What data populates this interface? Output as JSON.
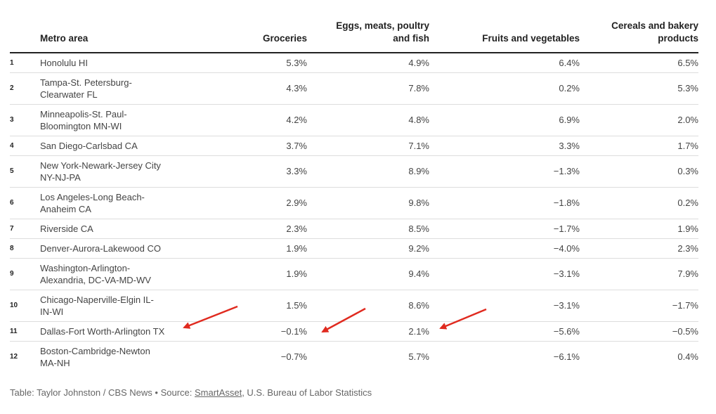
{
  "chart_data": {
    "type": "table",
    "columns": [
      "",
      "Metro area",
      "Groceries",
      "Eggs, meats, poultry and fish",
      "Fruits and vegetables",
      "Cereals and bakery products"
    ],
    "header_lines": {
      "metro": "Metro area",
      "groceries": "Groceries",
      "eggs_line1": "Eggs, meats, poultry",
      "eggs_line2": "and fish",
      "fruits": "Fruits and vegetables",
      "cereals_line1": "Cereals and bakery",
      "cereals_line2": "products"
    },
    "rows": [
      {
        "rank": "1",
        "area_line1": "Honolulu HI",
        "area_line2": "",
        "groceries": "5.3%",
        "eggs": "4.9%",
        "fruits": "6.4%",
        "cereals": "6.5%"
      },
      {
        "rank": "2",
        "area_line1": "Tampa-St. Petersburg-",
        "area_line2": "Clearwater FL",
        "groceries": "4.3%",
        "eggs": "7.8%",
        "fruits": "0.2%",
        "cereals": "5.3%"
      },
      {
        "rank": "3",
        "area_line1": "Minneapolis-St. Paul-",
        "area_line2": "Bloomington MN-WI",
        "groceries": "4.2%",
        "eggs": "4.8%",
        "fruits": "6.9%",
        "cereals": "2.0%"
      },
      {
        "rank": "4",
        "area_line1": "San Diego-Carlsbad CA",
        "area_line2": "",
        "groceries": "3.7%",
        "eggs": "7.1%",
        "fruits": "3.3%",
        "cereals": "1.7%"
      },
      {
        "rank": "5",
        "area_line1": "New York-Newark-Jersey City",
        "area_line2": "NY-NJ-PA",
        "groceries": "3.3%",
        "eggs": "8.9%",
        "fruits": "−1.3%",
        "cereals": "0.3%"
      },
      {
        "rank": "6",
        "area_line1": "Los Angeles-Long Beach-",
        "area_line2": "Anaheim CA",
        "groceries": "2.9%",
        "eggs": "9.8%",
        "fruits": "−1.8%",
        "cereals": "0.2%"
      },
      {
        "rank": "7",
        "area_line1": "Riverside CA",
        "area_line2": "",
        "groceries": "2.3%",
        "eggs": "8.5%",
        "fruits": "−1.7%",
        "cereals": "1.9%"
      },
      {
        "rank": "8",
        "area_line1": "Denver-Aurora-Lakewood CO",
        "area_line2": "",
        "groceries": "1.9%",
        "eggs": "9.2%",
        "fruits": "−4.0%",
        "cereals": "2.3%"
      },
      {
        "rank": "9",
        "area_line1": "Washington-Arlington-",
        "area_line2": "Alexandria, DC-VA-MD-WV",
        "groceries": "1.9%",
        "eggs": "9.4%",
        "fruits": "−3.1%",
        "cereals": "7.9%"
      },
      {
        "rank": "10",
        "area_line1": "Chicago-Naperville-Elgin IL-",
        "area_line2": "IN-WI",
        "groceries": "1.5%",
        "eggs": "8.6%",
        "fruits": "−3.1%",
        "cereals": "−1.7%"
      },
      {
        "rank": "11",
        "area_line1": "Dallas-Fort Worth-Arlington TX",
        "area_line2": "",
        "groceries": "−0.1%",
        "eggs": "2.1%",
        "fruits": "−5.6%",
        "cereals": "−0.5%"
      },
      {
        "rank": "12",
        "area_line1": "Boston-Cambridge-Newton",
        "area_line2": "MA-NH",
        "groceries": "−0.7%",
        "eggs": "5.7%",
        "fruits": "−6.1%",
        "cereals": "0.4%"
      }
    ]
  },
  "footer": {
    "prefix": "Table: Taylor Johnston / CBS News • Source: ",
    "link": "SmartAsset",
    "suffix": ", U.S. Bureau of Labor Statistics"
  },
  "annotations": {
    "arrow_color": "#e02a1f",
    "arrows_target_row": "11"
  }
}
